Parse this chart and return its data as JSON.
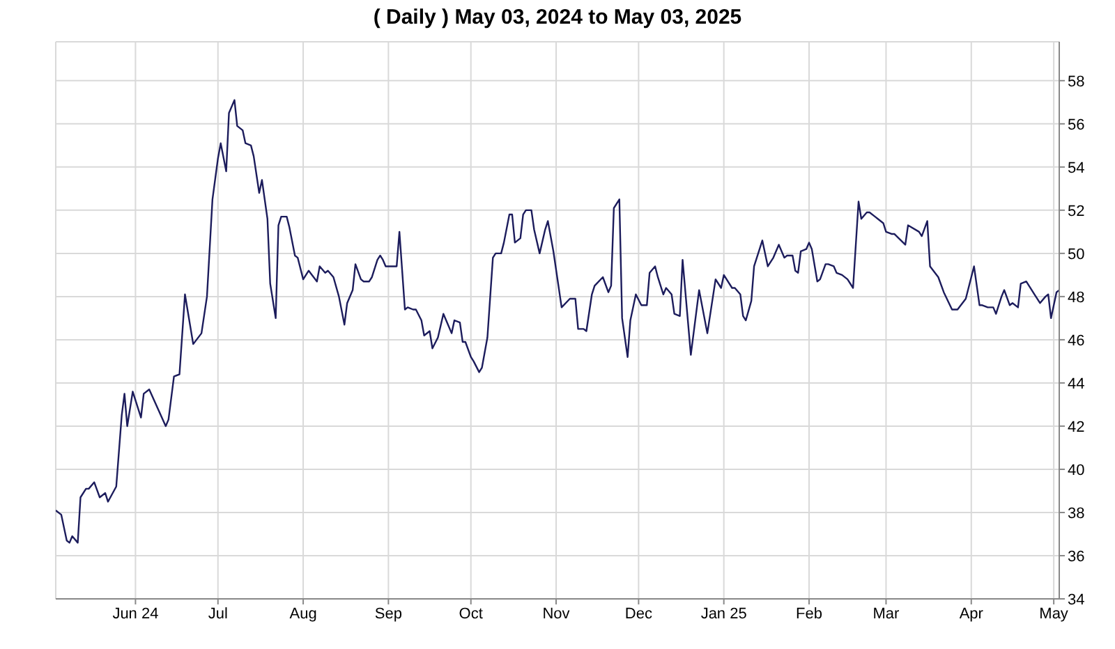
{
  "chart_data": {
    "type": "line",
    "title": "( Daily ) May 03, 2024 to May 03, 2025",
    "x": [
      "2024-05-03",
      "2024-05-05",
      "2024-05-07",
      "2024-05-08",
      "2024-05-09",
      "2024-05-11",
      "2024-05-12",
      "2024-05-14",
      "2024-05-15",
      "2024-05-17",
      "2024-05-19",
      "2024-05-21",
      "2024-05-22",
      "2024-05-25",
      "2024-05-27",
      "2024-05-28",
      "2024-05-29",
      "2024-05-31",
      "2024-06-03",
      "2024-06-04",
      "2024-06-06",
      "2024-06-12",
      "2024-06-13",
      "2024-06-15",
      "2024-06-17",
      "2024-06-19",
      "2024-06-22",
      "2024-06-25",
      "2024-06-27",
      "2024-06-29",
      "2024-07-01",
      "2024-07-02",
      "2024-07-04",
      "2024-07-05",
      "2024-07-07",
      "2024-07-08",
      "2024-07-10",
      "2024-07-11",
      "2024-07-13",
      "2024-07-14",
      "2024-07-16",
      "2024-07-17",
      "2024-07-19",
      "2024-07-20",
      "2024-07-22",
      "2024-07-23",
      "2024-07-24",
      "2024-07-26",
      "2024-07-27",
      "2024-07-29",
      "2024-07-30",
      "2024-08-01",
      "2024-08-03",
      "2024-08-06",
      "2024-08-07",
      "2024-08-09",
      "2024-08-10",
      "2024-08-12",
      "2024-08-14",
      "2024-08-16",
      "2024-08-17",
      "2024-08-19",
      "2024-08-20",
      "2024-08-22",
      "2024-08-23",
      "2024-08-25",
      "2024-08-26",
      "2024-08-28",
      "2024-08-29",
      "2024-08-30",
      "2024-08-31",
      "2024-09-04",
      "2024-09-05",
      "2024-09-07",
      "2024-09-08",
      "2024-09-10",
      "2024-09-11",
      "2024-09-13",
      "2024-09-14",
      "2024-09-16",
      "2024-09-17",
      "2024-09-19",
      "2024-09-21",
      "2024-09-22",
      "2024-09-24",
      "2024-09-25",
      "2024-09-27",
      "2024-09-28",
      "2024-09-29",
      "2024-10-01",
      "2024-10-02",
      "2024-10-04",
      "2024-10-05",
      "2024-10-07",
      "2024-10-09",
      "2024-10-10",
      "2024-10-12",
      "2024-10-13",
      "2024-10-15",
      "2024-10-16",
      "2024-10-17",
      "2024-10-19",
      "2024-10-20",
      "2024-10-21",
      "2024-10-23",
      "2024-10-24",
      "2024-10-26",
      "2024-10-28",
      "2024-10-29",
      "2024-10-31",
      "2024-11-03",
      "2024-11-06",
      "2024-11-08",
      "2024-11-09",
      "2024-11-11",
      "2024-11-12",
      "2024-11-14",
      "2024-11-15",
      "2024-11-18",
      "2024-11-20",
      "2024-11-21",
      "2024-11-22",
      "2024-11-24",
      "2024-11-25",
      "2024-11-27",
      "2024-11-28",
      "2024-11-30",
      "2024-12-02",
      "2024-12-04",
      "2024-12-05",
      "2024-12-07",
      "2024-12-08",
      "2024-12-10",
      "2024-12-11",
      "2024-12-13",
      "2024-12-14",
      "2024-12-16",
      "2024-12-17",
      "2024-12-20",
      "2024-12-23",
      "2024-12-26",
      "2024-12-29",
      "2024-12-31",
      "2025-01-01",
      "2025-01-04",
      "2025-01-05",
      "2025-01-07",
      "2025-01-08",
      "2025-01-09",
      "2025-01-11",
      "2025-01-12",
      "2025-01-15",
      "2025-01-17",
      "2025-01-19",
      "2025-01-21",
      "2025-01-23",
      "2025-01-24",
      "2025-01-26",
      "2025-01-27",
      "2025-01-28",
      "2025-01-29",
      "2025-01-31",
      "2025-02-01",
      "2025-02-02",
      "2025-02-04",
      "2025-02-05",
      "2025-02-07",
      "2025-02-08",
      "2025-02-10",
      "2025-02-11",
      "2025-02-13",
      "2025-02-15",
      "2025-02-17",
      "2025-02-19",
      "2025-02-20",
      "2025-02-22",
      "2025-02-23",
      "2025-02-25",
      "2025-02-26",
      "2025-02-28",
      "2025-03-01",
      "2025-03-03",
      "2025-03-04",
      "2025-03-08",
      "2025-03-09",
      "2025-03-13",
      "2025-03-14",
      "2025-03-16",
      "2025-03-17",
      "2025-03-20",
      "2025-03-22",
      "2025-03-25",
      "2025-03-27",
      "2025-03-30",
      "2025-03-31",
      "2025-04-02",
      "2025-04-04",
      "2025-04-05",
      "2025-04-07",
      "2025-04-09",
      "2025-04-10",
      "2025-04-12",
      "2025-04-13",
      "2025-04-15",
      "2025-04-16",
      "2025-04-18",
      "2025-04-19",
      "2025-04-21",
      "2025-04-24",
      "2025-04-26",
      "2025-04-28",
      "2025-04-29",
      "2025-04-30",
      "2025-05-02",
      "2025-05-03"
    ],
    "series": [
      {
        "color": "#1c1c5c",
        "values": [
          38.1,
          37.9,
          36.7,
          36.6,
          36.9,
          36.6,
          38.7,
          39.1,
          39.1,
          39.4,
          38.7,
          38.9,
          38.5,
          39.2,
          42.5,
          43.5,
          42.0,
          43.6,
          42.4,
          43.5,
          43.7,
          42.0,
          42.3,
          44.3,
          44.4,
          48.1,
          45.8,
          46.3,
          48.0,
          52.5,
          54.4,
          55.1,
          53.8,
          56.5,
          57.1,
          55.9,
          55.7,
          55.1,
          55.0,
          54.5,
          52.8,
          53.4,
          51.6,
          48.6,
          47.0,
          51.3,
          51.7,
          51.7,
          51.2,
          49.9,
          49.8,
          48.8,
          49.2,
          48.7,
          49.4,
          49.1,
          49.2,
          48.9,
          48.0,
          46.7,
          47.7,
          48.3,
          49.5,
          48.8,
          48.7,
          48.7,
          48.9,
          49.7,
          49.9,
          49.7,
          49.4,
          49.4,
          51.0,
          47.4,
          47.5,
          47.4,
          47.4,
          46.9,
          46.2,
          46.4,
          45.6,
          46.1,
          47.2,
          46.9,
          46.3,
          46.9,
          46.8,
          45.9,
          45.9,
          45.2,
          45.0,
          44.5,
          44.7,
          46.1,
          49.8,
          50.0,
          50.0,
          50.5,
          51.8,
          51.8,
          50.5,
          50.7,
          51.8,
          52.0,
          52.0,
          51.1,
          50.0,
          51.1,
          51.5,
          50.1,
          47.5,
          47.9,
          47.9,
          46.5,
          46.5,
          46.4,
          48.1,
          48.5,
          48.9,
          48.2,
          48.5,
          52.1,
          52.5,
          47.0,
          45.2,
          46.9,
          48.1,
          47.6,
          47.6,
          49.1,
          49.4,
          48.9,
          48.1,
          48.4,
          48.1,
          47.2,
          47.1,
          49.7,
          45.3,
          48.3,
          46.3,
          48.8,
          48.4,
          49.0,
          48.4,
          48.4,
          48.1,
          47.1,
          46.9,
          47.8,
          49.4,
          50.6,
          49.4,
          49.8,
          50.4,
          49.8,
          49.9,
          49.9,
          49.2,
          49.1,
          50.1,
          50.2,
          50.5,
          50.2,
          48.7,
          48.8,
          49.5,
          49.5,
          49.4,
          49.1,
          49.0,
          48.8,
          48.4,
          52.4,
          51.6,
          51.9,
          51.9,
          51.7,
          51.6,
          51.4,
          51.0,
          50.9,
          50.9,
          50.4,
          51.3,
          51.0,
          50.8,
          51.5,
          49.4,
          48.9,
          48.2,
          47.4,
          47.4,
          47.9,
          48.4,
          49.4,
          47.6,
          47.6,
          47.5,
          47.5,
          47.2,
          48.0,
          48.3,
          47.6,
          47.7,
          47.5,
          48.6,
          48.7,
          48.1,
          47.7,
          48.0,
          48.1,
          47.0,
          48.2,
          48.3
        ]
      }
    ],
    "xlim": [
      "2024-05-03",
      "2025-05-03"
    ],
    "xticks": [
      {
        "value": "2024-06-01",
        "label": "Jun 24"
      },
      {
        "value": "2024-07-01",
        "label": "Jul"
      },
      {
        "value": "2024-08-01",
        "label": "Aug"
      },
      {
        "value": "2024-09-01",
        "label": "Sep"
      },
      {
        "value": "2024-10-01",
        "label": "Oct"
      },
      {
        "value": "2024-11-01",
        "label": "Nov"
      },
      {
        "value": "2024-12-01",
        "label": "Dec"
      },
      {
        "value": "2025-01-01",
        "label": "Jan 25"
      },
      {
        "value": "2025-02-01",
        "label": "Feb"
      },
      {
        "value": "2025-03-01",
        "label": "Mar"
      },
      {
        "value": "2025-04-01",
        "label": "Apr"
      },
      {
        "value": "2025-05-01",
        "label": "May"
      }
    ],
    "ylim": [
      34,
      59.8
    ],
    "yticks": [
      34,
      36,
      38,
      40,
      42,
      44,
      46,
      48,
      50,
      52,
      54,
      56,
      58
    ],
    "grid": true,
    "marker": "none",
    "line_style": "solid"
  }
}
